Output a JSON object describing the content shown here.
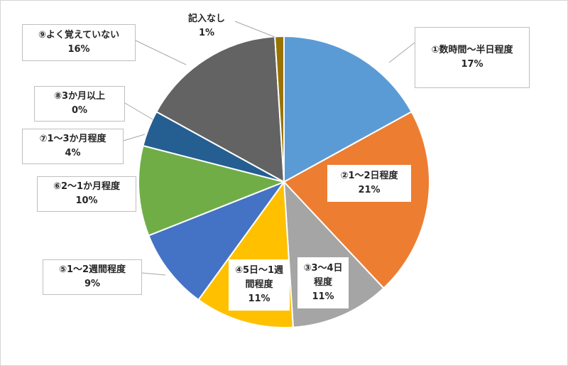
{
  "chart_data": {
    "type": "pie",
    "title": "",
    "slices": [
      {
        "label": "①数時間～半日程度",
        "value": 17,
        "pct": "17%",
        "color": "#5B9BD5"
      },
      {
        "label": "②1～2日程度",
        "value": 21,
        "pct": "21%",
        "color": "#ED7D31"
      },
      {
        "label": "③3～4日程度",
        "value": 11,
        "pct": "11%",
        "color": "#A5A5A5"
      },
      {
        "label": "④5日～1週間程度",
        "value": 11,
        "pct": "11%",
        "color": "#FFC000"
      },
      {
        "label": "⑤1～2週間程度",
        "value": 9,
        "pct": "9%",
        "color": "#4472C4"
      },
      {
        "label": "⑥2～1か月程度",
        "value": 10,
        "pct": "10%",
        "color": "#70AD47"
      },
      {
        "label": "⑦1～3か月程度",
        "value": 4,
        "pct": "4%",
        "color": "#255E91"
      },
      {
        "label": "⑧3か月以上",
        "value": 0,
        "pct": "0%",
        "color": "#9E480E"
      },
      {
        "label": "⑨よく覚えていない",
        "value": 16,
        "pct": "16%",
        "color": "#636363"
      },
      {
        "label": "記入なし",
        "value": 1,
        "pct": "1%",
        "color": "#997300"
      }
    ]
  }
}
